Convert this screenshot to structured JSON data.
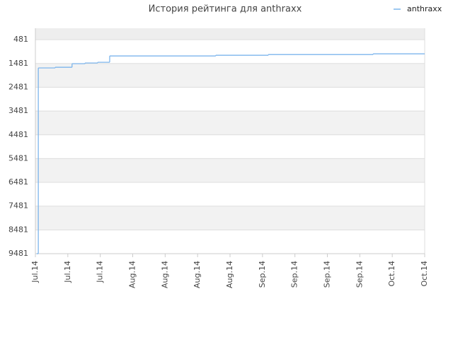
{
  "chart_data": {
    "type": "line",
    "title": "История рейтинга для anthraxx",
    "step": "after",
    "series": [
      {
        "name": "anthraxx",
        "color": "#7cb5ec",
        "x": [
          0.04,
          0.09,
          0.61,
          1.13,
          1.53,
          1.92,
          2.29,
          5.56,
          7.18,
          10.41
        ],
        "values": [
          9481,
          1669,
          1640,
          1490,
          1460,
          1430,
          1164,
          1135,
          1105,
          1075
        ]
      }
    ],
    "xlim": [
      0,
      12
    ],
    "xticks": [
      {
        "value": 0,
        "label": "Jul.14"
      },
      {
        "value": 1,
        "label": "Jul.14"
      },
      {
        "value": 2,
        "label": "Jul.14"
      },
      {
        "value": 3,
        "label": "Aug.14"
      },
      {
        "value": 4,
        "label": "Aug.14"
      },
      {
        "value": 5,
        "label": "Aug.14"
      },
      {
        "value": 6,
        "label": "Aug.14"
      },
      {
        "value": 7,
        "label": "Sep.14"
      },
      {
        "value": 8,
        "label": "Sep.14"
      },
      {
        "value": 9,
        "label": "Sep.14"
      },
      {
        "value": 10,
        "label": "Sep.14"
      },
      {
        "value": 11,
        "label": "Oct.14"
      },
      {
        "value": 12,
        "label": "Oct.14"
      }
    ],
    "ylim": [
      9481,
      0
    ],
    "yticks": [
      481,
      1481,
      2481,
      3481,
      4481,
      5481,
      6481,
      7481,
      8481,
      9481
    ],
    "grid": true,
    "legend": "top-right"
  }
}
